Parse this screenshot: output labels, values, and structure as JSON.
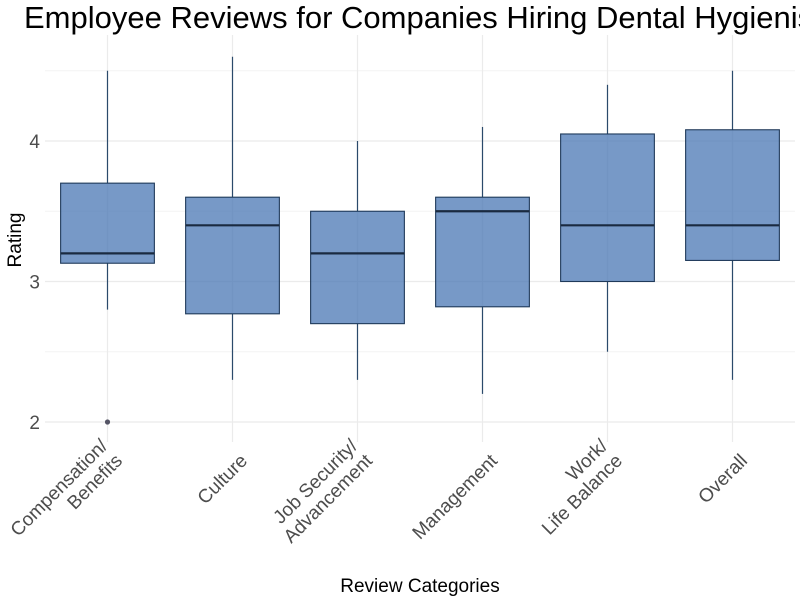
{
  "chart_data": {
    "type": "box",
    "title": "Employee Reviews for Companies Hiring Dental Hygienist",
    "xlabel": "Review Categories",
    "ylabel": "Rating",
    "ylim": [
      1.85,
      4.75
    ],
    "yticks": [
      "2",
      "3",
      "4"
    ],
    "ytick_values": [
      2,
      3,
      4
    ],
    "grid": true,
    "categories": [
      [
        "Compensation/",
        "Benefits"
      ],
      [
        "Culture"
      ],
      [
        "Job Security/",
        "Advancement"
      ],
      [
        "Management"
      ],
      [
        "Work/",
        "Life Balance"
      ],
      [
        "Overall"
      ]
    ],
    "series": [
      {
        "q1": 3.13,
        "median": 3.2,
        "q3": 3.7,
        "whisker_low": 2.8,
        "whisker_high": 4.5,
        "outliers": [
          2.0
        ]
      },
      {
        "q1": 2.77,
        "median": 3.4,
        "q3": 3.6,
        "whisker_low": 2.3,
        "whisker_high": 4.6,
        "outliers": []
      },
      {
        "q1": 2.7,
        "median": 3.2,
        "q3": 3.5,
        "whisker_low": 2.3,
        "whisker_high": 4.0,
        "outliers": []
      },
      {
        "q1": 2.82,
        "median": 3.5,
        "q3": 3.6,
        "whisker_low": 2.2,
        "whisker_high": 4.1,
        "outliers": []
      },
      {
        "q1": 3.0,
        "median": 3.4,
        "q3": 4.05,
        "whisker_low": 2.5,
        "whisker_high": 4.4,
        "outliers": []
      },
      {
        "q1": 3.15,
        "median": 3.4,
        "q3": 4.08,
        "whisker_low": 2.3,
        "whisker_high": 4.5,
        "outliers": []
      }
    ],
    "colors": {
      "box_fill": "#4a77b4",
      "box_stroke": "#1f3a5a",
      "median": "#1a2a40",
      "whisker": "#2b4a6b",
      "outlier": "#555566",
      "grid": "#ebebeb"
    }
  }
}
